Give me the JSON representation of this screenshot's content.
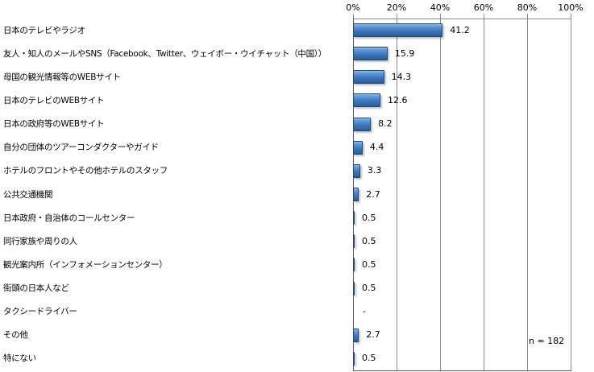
{
  "chart_data": {
    "type": "bar",
    "orientation": "horizontal",
    "title": "",
    "xlabel": "",
    "ylabel": "",
    "xlim": [
      0,
      100
    ],
    "x_ticks": [
      "0%",
      "20%",
      "40%",
      "60%",
      "80%",
      "100%"
    ],
    "grid": true,
    "legend": null,
    "categories": [
      "日本のテレビやラジオ",
      "友人・知人のメールやSNS（Facebook、Twitter、ウェイボー・ウイチャット（中国））",
      "母国の観光情報等のWEBサイト",
      "日本のテレビのWEBサイト",
      "日本の政府等のWEBサイト",
      "自分の団体のツアーコンダクターやガイド",
      "ホテルのフロントやその他ホテルのスタッフ",
      "公共交通機関",
      "日本政府・自治体のコールセンター",
      "同行家族や周りの人",
      "観光案内所（インフォメーションセンター）",
      "街頭の日本人など",
      "タクシードライバー",
      "その他",
      "特にない"
    ],
    "values": [
      41.2,
      15.9,
      14.3,
      12.6,
      8.2,
      4.4,
      3.3,
      2.7,
      0.5,
      0.5,
      0.5,
      0.5,
      0,
      2.7,
      0.5
    ],
    "value_labels": [
      "41.2",
      "15.9",
      "14.3",
      "12.6",
      "8.2",
      "4.4",
      "3.3",
      "2.7",
      "0.5",
      "0.5",
      "0.5",
      "0.5",
      "-",
      "2.7",
      "0.5"
    ],
    "annotation": "n = 182",
    "bar_color": "#3a73bb"
  }
}
